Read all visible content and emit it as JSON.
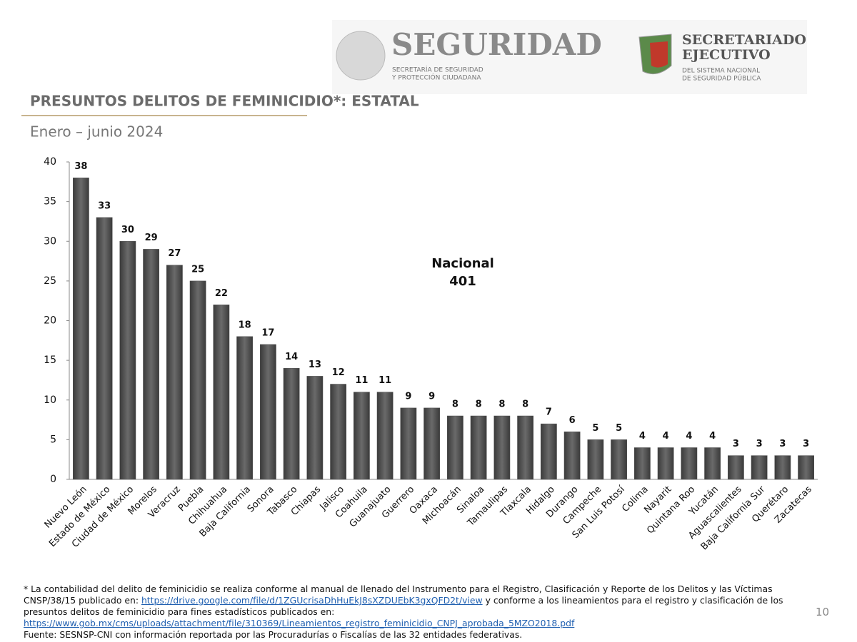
{
  "header": {
    "seguridad": "SEGURIDAD",
    "seguridad_sub1": "SECRETARÍA DE SEGURIDAD",
    "seguridad_sub2": "Y PROTECCIÓN CIUDADANA",
    "se_title1": "SECRETARIADO",
    "se_title2": "EJECUTIVO",
    "se_sub1": "DEL SISTEMA NACIONAL",
    "se_sub2": "DE SEGURIDAD PÚBLICA"
  },
  "chart_data": {
    "type": "bar",
    "title": "PRESUNTOS DELITOS DE FEMINICIDIO*: ESTATAL",
    "subtitle": "Enero – junio 2024",
    "annotation": {
      "label": "Nacional",
      "value": "401"
    },
    "categories": [
      "Nuevo León",
      "Estado de México",
      "Ciudad de México",
      "Morelos",
      "Veracruz",
      "Puebla",
      "Chihuahua",
      "Baja California",
      "Sonora",
      "Tabasco",
      "Chiapas",
      "Jalisco",
      "Coahuila",
      "Guanajuato",
      "Guerrero",
      "Oaxaca",
      "Michoacán",
      "Sinaloa",
      "Tamaulipas",
      "Tlaxcala",
      "Hidalgo",
      "Durango",
      "Campeche",
      "San Luis Potosí",
      "Colima",
      "Nayarit",
      "Quintana Roo",
      "Yucatán",
      "Aguascalientes",
      "Baja California Sur",
      "Querétaro",
      "Zacatecas"
    ],
    "values": [
      38,
      33,
      30,
      29,
      27,
      25,
      22,
      18,
      17,
      14,
      13,
      12,
      11,
      11,
      9,
      9,
      8,
      8,
      8,
      8,
      7,
      6,
      5,
      5,
      4,
      4,
      4,
      4,
      3,
      3,
      3,
      3
    ],
    "color": "#555555",
    "ylim": [
      0,
      40
    ],
    "yticks": [
      0,
      5,
      10,
      15,
      20,
      25,
      30,
      35,
      40
    ],
    "grid": false
  },
  "footnote": {
    "text1": "* La contabilidad del delito de feminicidio se realiza conforme al manual de llenado del Instrumento para el Registro, Clasificación y Reporte de los Delitos y las Víctimas CNSP/38/15 publicado en: ",
    "link1": "https://drive.google.com/file/d/1ZGUcrisaDhHuEkJ8sXZDUEbK3gxQFD2t/view",
    "text2": " y conforme a los lineamientos para el registro y clasificación de los presuntos delitos de feminicidio para fines estadísticos publicados en: ",
    "link2": "https://www.gob.mx/cms/uploads/attachment/file/310369/Lineamientos_registro_feminicidio_CNPJ_aprobada_5MZO2018.pdf",
    "source": "Fuente: SESNSP-CNI con información reportada por las Procuradurías o Fiscalías de las 32 entidades federativas."
  },
  "page_number": "10"
}
